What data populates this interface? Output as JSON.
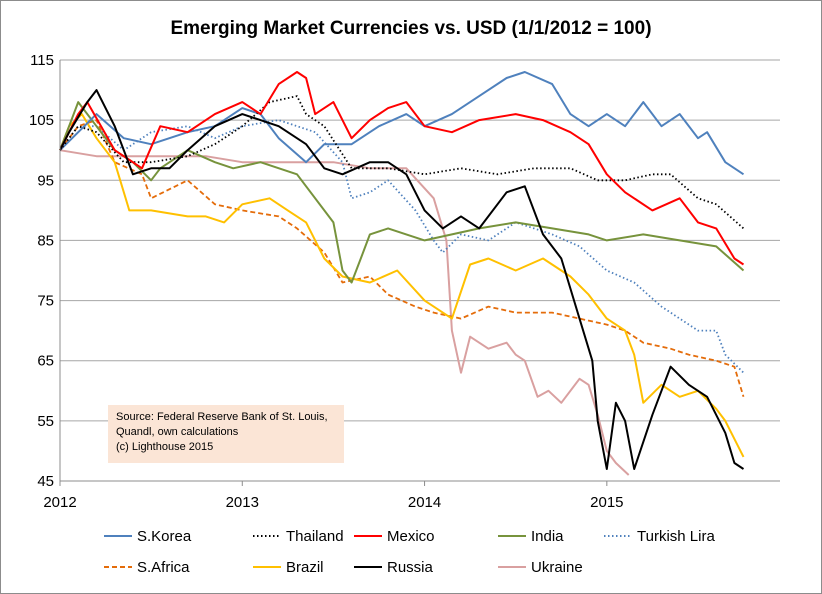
{
  "chart_data": {
    "type": "line",
    "title": "Emerging Market Currencies vs. USD (1/1/2012 = 100)",
    "xlabel": "",
    "ylabel": "",
    "xlim": [
      2012.0,
      2015.95
    ],
    "ylim": [
      45,
      115
    ],
    "yticks": [
      45,
      55,
      65,
      75,
      85,
      95,
      105,
      115
    ],
    "xticks": [
      2012,
      2013,
      2014,
      2015
    ],
    "xtick_labels": [
      "2012",
      "2013",
      "2014",
      "2015"
    ],
    "grid": "horizontal",
    "legend_position": "bottom",
    "annotation": [
      "Source: Federal Reserve Bank of St. Louis,",
      "Quandl, own calculations",
      "(c) Lighthouse 2015"
    ],
    "series": [
      {
        "name": "S.Korea",
        "color": "#4f81bd",
        "dash": "solid",
        "x": [
          2012.0,
          2012.1,
          2012.2,
          2012.35,
          2012.5,
          2012.7,
          2012.85,
          2013.0,
          2013.1,
          2013.2,
          2013.35,
          2013.45,
          2013.6,
          2013.75,
          2013.9,
          2014.0,
          2014.15,
          2014.3,
          2014.45,
          2014.55,
          2014.7,
          2014.8,
          2014.9,
          2015.0,
          2015.1,
          2015.2,
          2015.3,
          2015.4,
          2015.5,
          2015.55,
          2015.65,
          2015.75
        ],
        "y": [
          100,
          103,
          106,
          102,
          101,
          103,
          104,
          107,
          106,
          102,
          98,
          101,
          101,
          104,
          106,
          104,
          106,
          109,
          112,
          113,
          111,
          106,
          104,
          106,
          104,
          108,
          104,
          106,
          102,
          103,
          98,
          96
        ]
      },
      {
        "name": "Thailand",
        "color": "#000000",
        "dash": "dotted",
        "x": [
          2012.0,
          2012.1,
          2012.2,
          2012.35,
          2012.5,
          2012.7,
          2012.85,
          2013.0,
          2013.15,
          2013.3,
          2013.35,
          2013.45,
          2013.6,
          2013.8,
          2014.0,
          2014.2,
          2014.4,
          2014.6,
          2014.8,
          2014.95,
          2015.1,
          2015.25,
          2015.35,
          2015.5,
          2015.6,
          2015.75
        ],
        "y": [
          100,
          104,
          103,
          98,
          98,
          99,
          101,
          104,
          108,
          109,
          106,
          104,
          97,
          97,
          96,
          97,
          96,
          97,
          97,
          95,
          95,
          96,
          96,
          92,
          91,
          87
        ]
      },
      {
        "name": "Mexico",
        "color": "#ff0000",
        "dash": "solid",
        "x": [
          2012.0,
          2012.1,
          2012.15,
          2012.3,
          2012.45,
          2012.55,
          2012.7,
          2012.85,
          2013.0,
          2013.1,
          2013.2,
          2013.3,
          2013.35,
          2013.4,
          2013.5,
          2013.6,
          2013.7,
          2013.8,
          2013.9,
          2014.0,
          2014.15,
          2014.3,
          2014.5,
          2014.65,
          2014.8,
          2014.9,
          2015.0,
          2015.1,
          2015.25,
          2015.4,
          2015.5,
          2015.6,
          2015.7,
          2015.75
        ],
        "y": [
          100,
          106,
          108,
          100,
          97,
          104,
          103,
          106,
          108,
          106,
          111,
          113,
          112,
          106,
          108,
          102,
          105,
          107,
          108,
          104,
          103,
          105,
          106,
          105,
          103,
          101,
          96,
          93,
          90,
          92,
          88,
          87,
          82,
          81
        ]
      },
      {
        "name": "India",
        "color": "#77933c",
        "dash": "solid",
        "x": [
          2012.0,
          2012.05,
          2012.1,
          2012.2,
          2012.3,
          2012.4,
          2012.5,
          2012.55,
          2012.7,
          2012.85,
          2012.95,
          2013.1,
          2013.3,
          2013.5,
          2013.55,
          2013.6,
          2013.65,
          2013.7,
          2013.8,
          2013.9,
          2014.0,
          2014.15,
          2014.3,
          2014.5,
          2014.7,
          2014.9,
          2015.0,
          2015.2,
          2015.4,
          2015.6,
          2015.75
        ],
        "y": [
          100,
          104,
          108,
          104,
          100,
          98,
          95,
          97,
          100,
          98,
          97,
          98,
          96,
          88,
          80,
          78,
          82,
          86,
          87,
          86,
          85,
          86,
          87,
          88,
          87,
          86,
          85,
          86,
          85,
          84,
          80
        ]
      },
      {
        "name": "Turkish Lira",
        "color": "#4f81bd",
        "dash": "dotted",
        "x": [
          2012.0,
          2012.1,
          2012.2,
          2012.35,
          2012.5,
          2012.7,
          2012.85,
          2013.0,
          2013.2,
          2013.4,
          2013.55,
          2013.6,
          2013.7,
          2013.8,
          2013.95,
          2014.05,
          2014.1,
          2014.2,
          2014.35,
          2014.5,
          2014.7,
          2014.85,
          2015.0,
          2015.15,
          2015.3,
          2015.4,
          2015.5,
          2015.6,
          2015.65,
          2015.75
        ],
        "y": [
          100,
          104,
          104,
          100,
          103,
          104,
          102,
          104,
          105,
          103,
          98,
          92,
          93,
          95,
          90,
          85,
          83,
          86,
          85,
          88,
          86,
          84,
          80,
          78,
          74,
          72,
          70,
          70,
          66,
          63
        ]
      },
      {
        "name": "S.Africa",
        "color": "#e46c0a",
        "dash": "dashed",
        "x": [
          2012.0,
          2012.1,
          2012.2,
          2012.3,
          2012.45,
          2012.5,
          2012.7,
          2012.85,
          2013.0,
          2013.2,
          2013.3,
          2013.45,
          2013.55,
          2013.7,
          2013.8,
          2013.95,
          2014.05,
          2014.2,
          2014.35,
          2014.5,
          2014.7,
          2014.85,
          2015.0,
          2015.1,
          2015.2,
          2015.35,
          2015.45,
          2015.6,
          2015.7,
          2015.75
        ],
        "y": [
          100,
          104,
          105,
          98,
          96,
          92,
          95,
          91,
          90,
          89,
          87,
          83,
          78,
          79,
          76,
          74,
          73,
          72,
          74,
          73,
          73,
          72,
          71,
          70,
          68,
          67,
          66,
          65,
          64,
          59
        ]
      },
      {
        "name": "Brazil",
        "color": "#ffc000",
        "dash": "solid",
        "x": [
          2012.0,
          2012.05,
          2012.12,
          2012.2,
          2012.3,
          2012.38,
          2012.5,
          2012.7,
          2012.8,
          2012.9,
          2013.0,
          2013.15,
          2013.25,
          2013.35,
          2013.45,
          2013.55,
          2013.7,
          2013.85,
          2014.0,
          2014.15,
          2014.25,
          2014.35,
          2014.5,
          2014.65,
          2014.8,
          2014.9,
          2015.0,
          2015.1,
          2015.15,
          2015.2,
          2015.3,
          2015.4,
          2015.5,
          2015.6,
          2015.65,
          2015.75
        ],
        "y": [
          100,
          104,
          106,
          102,
          98,
          90,
          90,
          89,
          89,
          88,
          91,
          92,
          90,
          88,
          82,
          79,
          78,
          80,
          75,
          72,
          81,
          82,
          80,
          82,
          79,
          76,
          72,
          70,
          66,
          58,
          61,
          59,
          60,
          57,
          55,
          49
        ]
      },
      {
        "name": "Russia",
        "color": "#000000",
        "dash": "solid",
        "x": [
          2012.0,
          2012.05,
          2012.15,
          2012.2,
          2012.3,
          2012.4,
          2012.5,
          2012.6,
          2012.7,
          2012.85,
          2013.0,
          2013.2,
          2013.35,
          2013.45,
          2013.55,
          2013.7,
          2013.8,
          2013.9,
          2014.0,
          2014.1,
          2014.2,
          2014.3,
          2014.45,
          2014.55,
          2014.65,
          2014.75,
          2014.85,
          2014.92,
          2014.95,
          2015.0,
          2015.05,
          2015.1,
          2015.15,
          2015.25,
          2015.35,
          2015.45,
          2015.55,
          2015.65,
          2015.7,
          2015.75
        ],
        "y": [
          100,
          103,
          108,
          110,
          104,
          96,
          97,
          97,
          100,
          104,
          106,
          104,
          101,
          97,
          96,
          98,
          98,
          96,
          90,
          87,
          89,
          87,
          93,
          94,
          86,
          82,
          72,
          65,
          55,
          47,
          58,
          55,
          47,
          56,
          64,
          61,
          59,
          53,
          48,
          47
        ]
      },
      {
        "name": "Ukraine",
        "color": "#d9a0a0",
        "dash": "solid",
        "x": [
          2012.0,
          2012.2,
          2012.5,
          2012.8,
          2013.0,
          2013.3,
          2013.5,
          2013.7,
          2013.9,
          2014.05,
          2014.12,
          2014.15,
          2014.2,
          2014.25,
          2014.35,
          2014.45,
          2014.5,
          2014.55,
          2014.62,
          2014.68,
          2014.75,
          2014.85,
          2014.9,
          2014.95,
          2015.0,
          2015.05,
          2015.12
        ],
        "y": [
          100,
          99,
          99,
          99,
          98,
          98,
          98,
          97,
          97,
          92,
          85,
          70,
          63,
          69,
          67,
          68,
          66,
          65,
          59,
          60,
          58,
          62,
          61,
          56,
          50,
          48,
          46
        ]
      }
    ]
  }
}
